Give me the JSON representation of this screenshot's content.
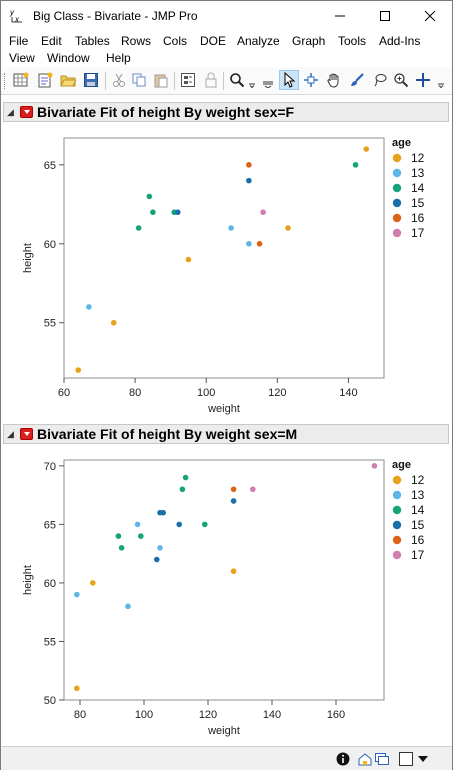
{
  "window": {
    "title": "Big Class - Bivariate - JMP Pro",
    "icon": "jmp-app-icon",
    "controls": {
      "minimize": "—",
      "maximize": "☐",
      "close": "✕"
    }
  },
  "menubar": {
    "items": [
      "File",
      "Edit",
      "Tables",
      "Rows",
      "Cols",
      "DOE",
      "Analyze",
      "Graph",
      "Tools",
      "Add-Ins",
      "View",
      "Window",
      "Help"
    ]
  },
  "toolbar": {
    "buttons": [
      "new-data-table-icon",
      "new-script-icon",
      "open-folder-icon",
      "save-icon",
      "cut-icon",
      "copy-icon",
      "paste-icon",
      "show-subset-icon",
      "lock-icon",
      "search-icon",
      "arrow-tool-icon",
      "selection-tool-icon",
      "grabber-hand-icon",
      "brush-icon",
      "lasso-icon",
      "magnifier-icon",
      "crosshair-icon"
    ]
  },
  "reports": [
    {
      "title": "Bivariate Fit of height By weight sex=F"
    },
    {
      "title": "Bivariate Fit of height By weight sex=M"
    }
  ],
  "legend": {
    "title": "age",
    "colors": {
      "12": "#e8a21a",
      "13": "#5eb5e8",
      "14": "#17a37a",
      "15": "#1a6fab",
      "16": "#db6317",
      "17": "#cf7eb0"
    }
  },
  "chart_data": [
    {
      "type": "scatter",
      "title": "",
      "xlabel": "weight",
      "ylabel": "height",
      "xlim": [
        60,
        150
      ],
      "ylim": [
        51.5,
        66.7
      ],
      "xticks": [
        60,
        80,
        100,
        120,
        140
      ],
      "yticks": [
        55,
        60,
        65
      ],
      "legend_title": "age",
      "legend_position": "right",
      "grid": false,
      "series": [
        {
          "name": "12",
          "color": "#e8a21a",
          "points": [
            [
              64,
              52
            ],
            [
              74,
              55
            ],
            [
              95,
              59
            ],
            [
              123,
              61
            ],
            [
              145,
              66
            ]
          ]
        },
        {
          "name": "13",
          "color": "#5eb5e8",
          "points": [
            [
              67,
              56
            ],
            [
              107,
              61
            ],
            [
              112,
              60
            ]
          ]
        },
        {
          "name": "14",
          "color": "#17a37a",
          "points": [
            [
              81,
              61
            ],
            [
              84,
              63
            ],
            [
              85,
              62
            ],
            [
              91,
              62
            ],
            [
              142,
              65
            ]
          ]
        },
        {
          "name": "15",
          "color": "#1a6fab",
          "points": [
            [
              92,
              62
            ],
            [
              112,
              64
            ]
          ]
        },
        {
          "name": "16",
          "color": "#db6317",
          "points": [
            [
              112,
              65
            ],
            [
              115,
              60
            ]
          ]
        },
        {
          "name": "17",
          "color": "#cf7eb0",
          "points": [
            [
              116,
              62
            ]
          ]
        }
      ]
    },
    {
      "type": "scatter",
      "title": "",
      "xlabel": "weight",
      "ylabel": "height",
      "xlim": [
        75,
        175
      ],
      "ylim": [
        50,
        70.5
      ],
      "xticks": [
        80,
        100,
        120,
        140,
        160
      ],
      "yticks": [
        50,
        55,
        60,
        65,
        70
      ],
      "legend_title": "age",
      "legend_position": "right",
      "grid": false,
      "series": [
        {
          "name": "12",
          "color": "#e8a21a",
          "points": [
            [
              79,
              51
            ],
            [
              84,
              60
            ],
            [
              128,
              61
            ]
          ]
        },
        {
          "name": "13",
          "color": "#5eb5e8",
          "points": [
            [
              79,
              59
            ],
            [
              95,
              58
            ],
            [
              98,
              65
            ],
            [
              105,
              63
            ]
          ]
        },
        {
          "name": "14",
          "color": "#17a37a",
          "points": [
            [
              92,
              64
            ],
            [
              93,
              63
            ],
            [
              99,
              64
            ],
            [
              112,
              68
            ],
            [
              113,
              69
            ],
            [
              119,
              65
            ]
          ]
        },
        {
          "name": "15",
          "color": "#1a6fab",
          "points": [
            [
              104,
              62
            ],
            [
              105,
              66
            ],
            [
              106,
              66
            ],
            [
              111,
              65
            ],
            [
              128,
              67
            ]
          ]
        },
        {
          "name": "16",
          "color": "#db6317",
          "points": [
            [
              128,
              68
            ]
          ]
        },
        {
          "name": "17",
          "color": "#cf7eb0",
          "points": [
            [
              134,
              68
            ],
            [
              172,
              70
            ]
          ]
        }
      ]
    }
  ],
  "statusbar": {
    "icons": [
      "info-icon",
      "home-window-icon",
      "window-list-icon",
      "checkbox-icon",
      "dropdown-arrow-icon"
    ]
  }
}
